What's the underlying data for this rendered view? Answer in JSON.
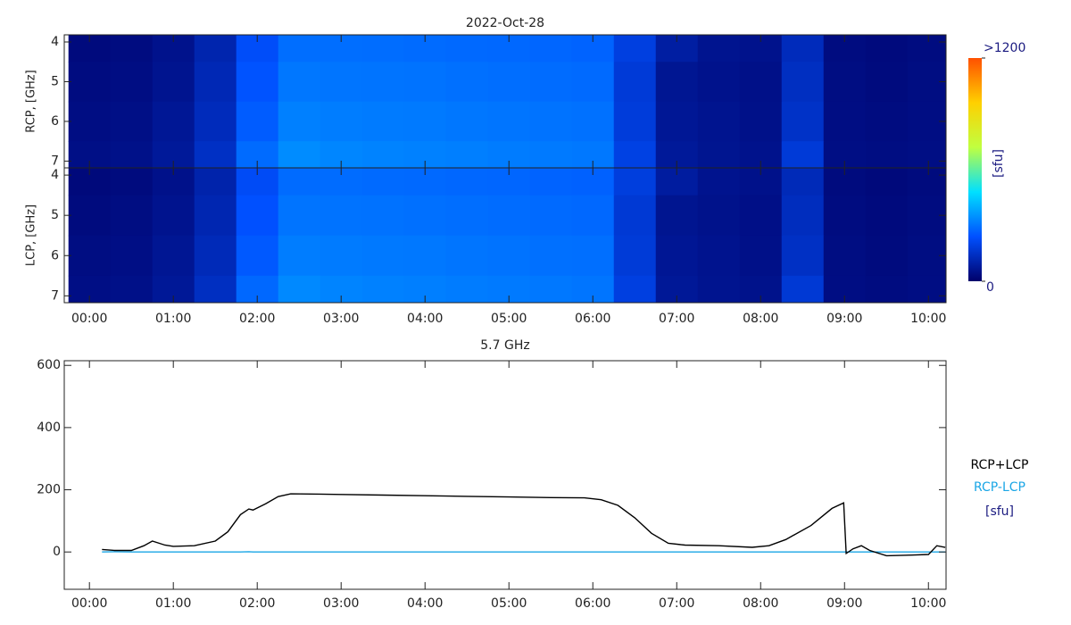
{
  "chart_data": [
    {
      "type": "heatmap",
      "title": "2022-Oct-28",
      "x": [
        0,
        0.5,
        1,
        1.5,
        2,
        2.5,
        3,
        3.5,
        4,
        4.5,
        5,
        5.5,
        6,
        6.5,
        7,
        7.5,
        8,
        8.5,
        9,
        9.5,
        10
      ],
      "y": [
        4,
        5,
        6,
        7
      ],
      "xlim": [
        -0.3,
        10.21
      ],
      "xticks": [
        {
          "value": 0,
          "label": "00:00"
        },
        {
          "value": 1,
          "label": "01:00"
        },
        {
          "value": 2,
          "label": "02:00"
        },
        {
          "value": 3,
          "label": "03:00"
        },
        {
          "value": 4,
          "label": "04:00"
        },
        {
          "value": 5,
          "label": "05:00"
        },
        {
          "value": 6,
          "label": "06:00"
        },
        {
          "value": 7,
          "label": "07:00"
        },
        {
          "value": 8,
          "label": "08:00"
        },
        {
          "value": 9,
          "label": "09:00"
        },
        {
          "value": 10,
          "label": "10:00"
        }
      ],
      "ylim": [
        3.82,
        7.17
      ],
      "yticks": [
        4,
        5,
        6,
        7
      ],
      "panels": [
        {
          "ylabel": "RCP, [GHz]",
          "values": [
            [
              30,
              35,
              55,
              110,
              230,
              290,
              290,
              288,
              285,
              282,
              280,
              276,
              272,
              190,
              90,
              60,
              55,
              130,
              35,
              30,
              35
            ],
            [
              35,
              40,
              60,
              120,
              245,
              305,
              302,
              300,
              298,
              294,
              290,
              287,
              284,
              175,
              65,
              55,
              48,
              140,
              38,
              32,
              38
            ],
            [
              40,
              45,
              70,
              130,
              260,
              320,
              315,
              312,
              310,
              305,
              302,
              298,
              295,
              180,
              70,
              60,
              50,
              150,
              40,
              35,
              40
            ],
            [
              45,
              50,
              75,
              145,
              285,
              340,
              330,
              325,
              322,
              318,
              314,
              310,
              306,
              195,
              75,
              62,
              55,
              175,
              42,
              38,
              42
            ]
          ]
        },
        {
          "ylabel": "LCP, [GHz]",
          "values": [
            [
              28,
              33,
              52,
              105,
              225,
              285,
              286,
              284,
              281,
              278,
              276,
              272,
              268,
              185,
              85,
              58,
              52,
              125,
              33,
              28,
              33
            ],
            [
              33,
              38,
              58,
              115,
              240,
              300,
              298,
              296,
              294,
              290,
              286,
              283,
              280,
              170,
              62,
              53,
              46,
              135,
              36,
              30,
              36
            ],
            [
              38,
              43,
              66,
              125,
              255,
              315,
              311,
              308,
              306,
              301,
              298,
              294,
              291,
              176,
              67,
              58,
              48,
              145,
              38,
              33,
              38
            ],
            [
              43,
              48,
              72,
              140,
              280,
              335,
              326,
              321,
              318,
              314,
              310,
              306,
              302,
              190,
              72,
              60,
              53,
              170,
              40,
              36,
              40
            ]
          ]
        }
      ],
      "colorscale": [
        "#00006a",
        "#0050ff",
        "#00e0ff",
        "#c0ff40",
        "#ffd000",
        "#ff5000"
      ],
      "colorbar": {
        "label": "[sfu]",
        "range": [
          0,
          1200
        ],
        "ticks": [
          {
            "value": 1200,
            "label": ">1200"
          },
          0
        ]
      }
    },
    {
      "type": "line",
      "title": "5.7 GHz",
      "x": [
        0.15,
        0.3,
        0.5,
        0.65,
        0.75,
        0.9,
        1.0,
        1.25,
        1.5,
        1.65,
        1.8,
        1.9,
        1.95,
        2.1,
        2.25,
        2.4,
        2.75,
        3.0,
        3.5,
        4.0,
        4.5,
        5.0,
        5.5,
        5.9,
        6.1,
        6.3,
        6.5,
        6.7,
        6.9,
        7.1,
        7.5,
        7.9,
        8.1,
        8.3,
        8.6,
        8.85,
        8.99,
        9.02,
        9.1,
        9.2,
        9.3,
        9.5,
        9.8,
        10.0,
        10.1,
        10.2
      ],
      "series": [
        {
          "name": "RCP+LCP",
          "color": "#000000",
          "values": [
            8,
            5,
            5,
            20,
            35,
            22,
            18,
            20,
            35,
            65,
            120,
            138,
            135,
            155,
            178,
            187,
            186,
            185,
            183,
            181,
            179,
            177,
            175,
            174,
            168,
            150,
            110,
            60,
            28,
            22,
            20,
            15,
            20,
            40,
            85,
            140,
            158,
            -5,
            10,
            20,
            5,
            -12,
            -10,
            -8,
            20,
            15
          ]
        },
        {
          "name": "RCP-LCP",
          "color": "#1aa6e6",
          "values": [
            0,
            1,
            0,
            0,
            0,
            0,
            0,
            0,
            0,
            0,
            0,
            1,
            0,
            0,
            0,
            0,
            0,
            0,
            0,
            0,
            0,
            0,
            0,
            0,
            0,
            0,
            0,
            0,
            0,
            0,
            0,
            0,
            0,
            0,
            0,
            0,
            0,
            0,
            0,
            0,
            0,
            0,
            0,
            0,
            0,
            0
          ]
        }
      ],
      "unit": "[sfu]",
      "xlim": [
        -0.3,
        10.21
      ],
      "xticks": [
        {
          "value": 0,
          "label": "00:00"
        },
        {
          "value": 1,
          "label": "01:00"
        },
        {
          "value": 2,
          "label": "02:00"
        },
        {
          "value": 3,
          "label": "03:00"
        },
        {
          "value": 4,
          "label": "04:00"
        },
        {
          "value": 5,
          "label": "05:00"
        },
        {
          "value": 6,
          "label": "06:00"
        },
        {
          "value": 7,
          "label": "07:00"
        },
        {
          "value": 8,
          "label": "08:00"
        },
        {
          "value": 9,
          "label": "09:00"
        },
        {
          "value": 10,
          "label": "10:00"
        }
      ],
      "ylim": [
        -120,
        615
      ],
      "yticks": [
        0,
        200,
        400,
        600
      ]
    }
  ]
}
